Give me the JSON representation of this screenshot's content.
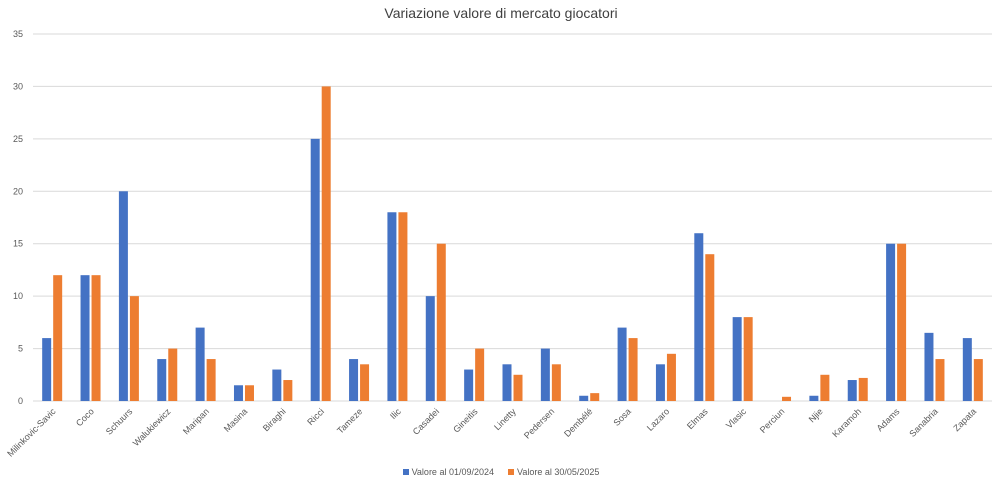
{
  "chart_data": {
    "type": "bar",
    "title": "Variazione valore di mercato giocatori",
    "categories": [
      "Milinkovic-Savic",
      "Coco",
      "Schuurs",
      "Walukiewicz",
      "Maripan",
      "Masina",
      "Biraghi",
      "Ricci",
      "Tameze",
      "Ilic",
      "Casadei",
      "Gineitis",
      "Linetty",
      "Pedersen",
      "Dembélé",
      "Sosa",
      "Lazaro",
      "Elmas",
      "Vlasic",
      "Perciun",
      "Njie",
      "Karamoh",
      "Adams",
      "Sanabria",
      "Zapata"
    ],
    "series": [
      {
        "name": "Valore al 01/09/2024",
        "color": "#4472c4",
        "values": [
          6,
          12,
          20,
          4,
          7,
          1.5,
          3,
          25,
          4,
          18,
          10,
          3,
          3.5,
          5,
          0.5,
          7,
          3.5,
          16,
          8,
          0,
          0.5,
          2,
          15,
          6.5,
          6
        ]
      },
      {
        "name": "Valore al 30/05/2025",
        "color": "#ed7d31",
        "values": [
          12,
          12,
          10,
          5,
          4,
          1.5,
          2,
          30,
          3.5,
          18,
          15,
          5,
          2.5,
          3.5,
          0.75,
          6,
          4.5,
          14,
          8,
          0.4,
          2.5,
          2.2,
          15,
          4,
          4
        ]
      }
    ],
    "xlabel": "",
    "ylabel": "",
    "ylim": [
      0,
      35
    ],
    "yticks": [
      0,
      5,
      10,
      15,
      20,
      25,
      30,
      35
    ],
    "grid": true,
    "legend_position": "bottom"
  }
}
